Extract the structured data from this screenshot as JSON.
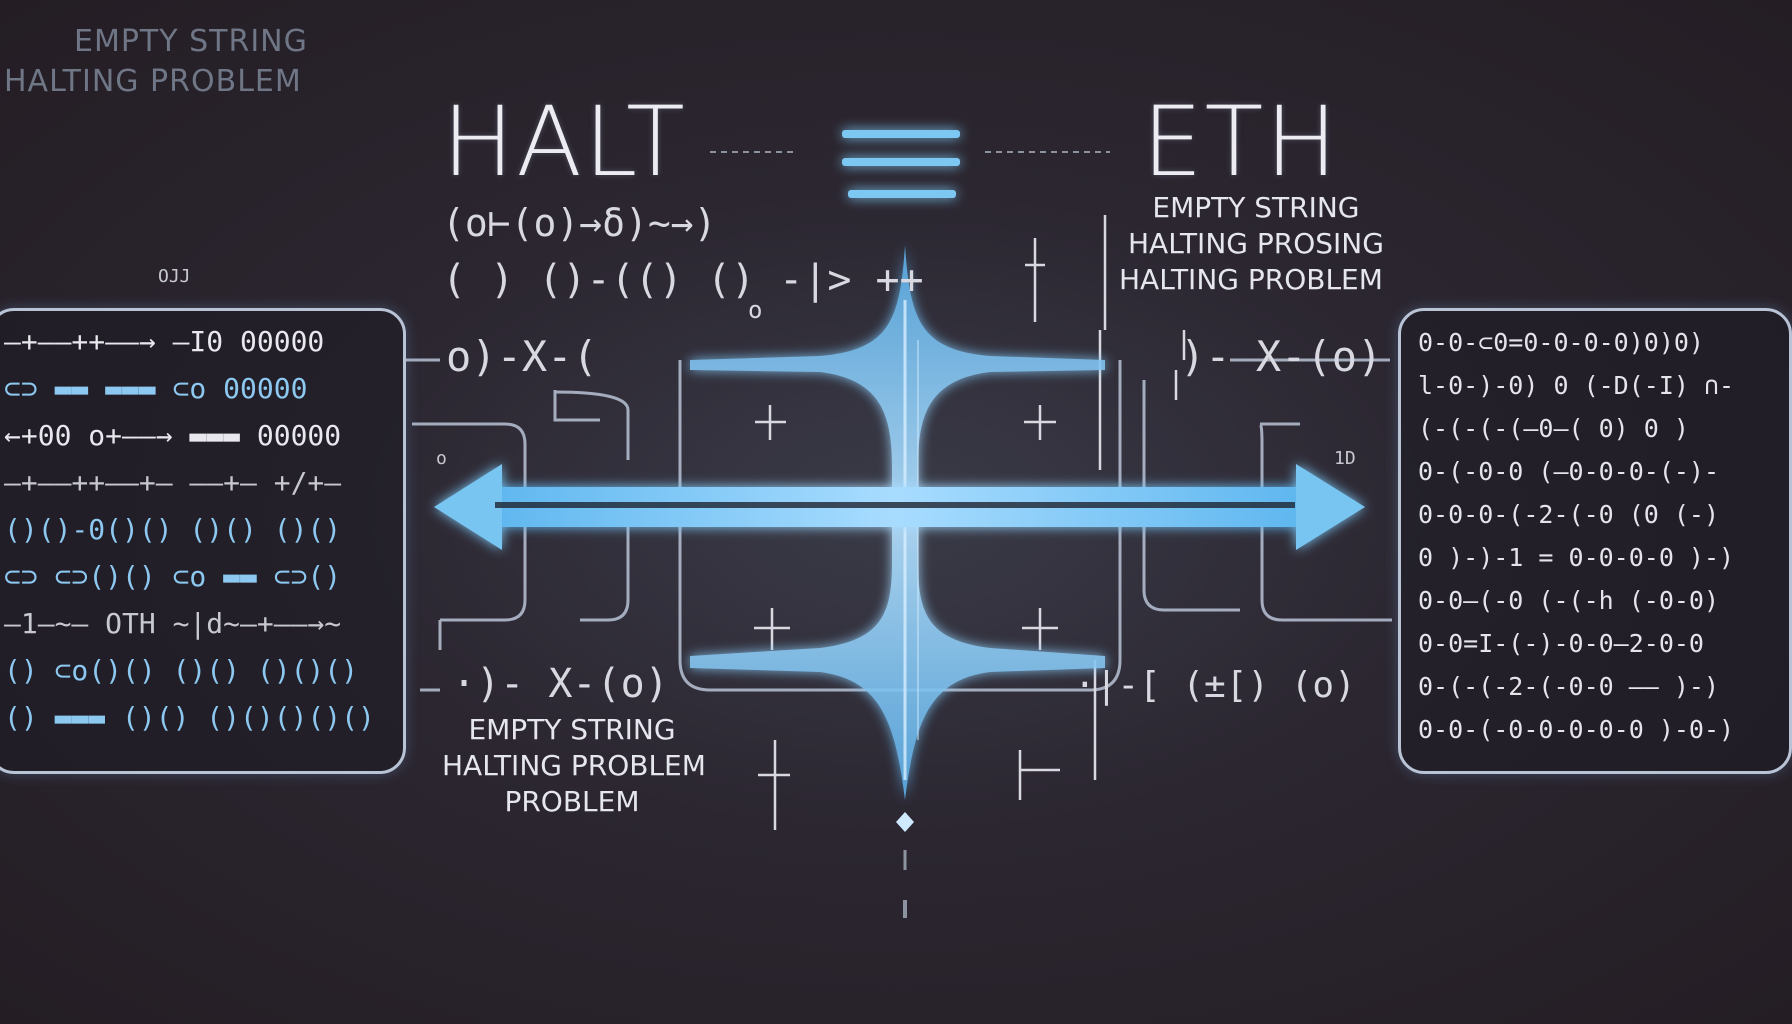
{
  "corner_label": {
    "line1": "EMPTY STRING",
    "line2": "HALTING PROBLEM"
  },
  "title_left": "HALT",
  "title_right": "ETH",
  "equiv_symbol": "≡",
  "right_caption": {
    "line1": "EMPTY STRING",
    "line2": "HALTING PROSING",
    "line3": "HALTING PROBLEM"
  },
  "bottom_caption": {
    "line1": "EMPTY STRING",
    "line2": "HALTING PROBLEM",
    "line3": "PROBLEM"
  },
  "left_glyphs": {
    "row1": "(o⊢(o)→δ)~→)",
    "row2": "( )  ()-(()  ()  -|>  ++",
    "small": "o",
    "row3": "o)-X-(",
    "row4": "·)- X-(o)"
  },
  "right_glyphs": {
    "row1": ")- X-(o)",
    "row2": "·|-[ (±[) (o)"
  },
  "side_labels": {
    "far_left": "OJJ",
    "left_box": "o",
    "right_box": "1D"
  },
  "left_panel_rows": [
    {
      "text": "—+——++——→ —I0  00000",
      "color": "#e8e8ee"
    },
    {
      "text": "⊂⊃ ▬▬  ▬▬▬  ⊂o  00000",
      "color": "#8cc8f0"
    },
    {
      "text": "←+00 o+——→ ▬▬▬  00000",
      "color": "#e8e8ee"
    },
    {
      "text": "—+——++——+— ——+— +/+—",
      "color": "#c8c8d0"
    },
    {
      "text": "()()-0()()  ()()  ()()",
      "color": "#8cc8f0"
    },
    {
      "text": "⊂⊃ ⊂⊃()()  ⊂o ▬▬  ⊂⊃()",
      "color": "#8cc8f0"
    },
    {
      "text": "—1—~— OTH ~|d~—+——→~",
      "color": "#c8c8d0"
    },
    {
      "text": "() ⊂o()() ()() ()()()",
      "color": "#8cc8f0"
    },
    {
      "text": "() ▬▬▬ ()() ()()()()()",
      "color": "#8cc8f0"
    }
  ],
  "right_panel_rows": [
    "0-0-⊂0=0-0-0-0)0)0)",
    "l-0-)-0) 0 (-D(-I) ∩-",
    "(-(-(-(—0—(  0) 0 )",
    "0-(-0-0 (—0-0-0-(-)-",
    "0-0-0-(-2-(-0 (0 (-)",
    "0 )-)-1 = 0-0-0-0 )-)",
    "0-0—(-0 (-(-h (-0-0)",
    "0-0=I-(-)-0-0—2-0-0",
    "0-(-(-2-(-0-0 —— )-)",
    "0-0-(-0-0-0-0-0 )-0-)"
  ],
  "colors": {
    "accent": "#7cc8f2",
    "accent_glow": "#4aa8e8",
    "panel_border": "#b9c3d6",
    "background": "#2b2630"
  }
}
